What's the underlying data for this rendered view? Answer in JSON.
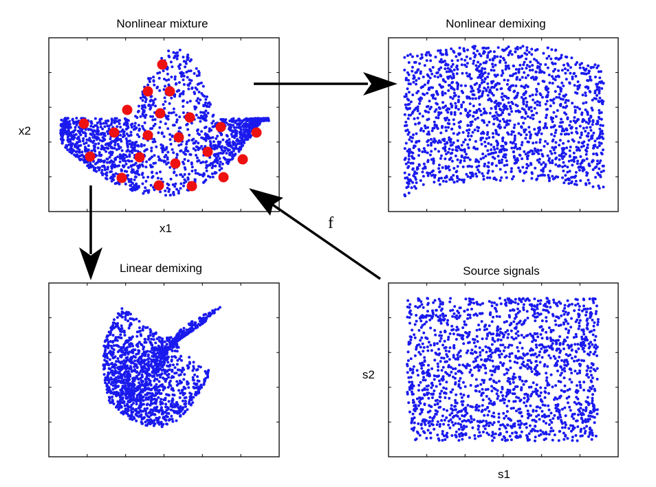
{
  "colors": {
    "points": "#1a1aee",
    "markers": "#ee1111",
    "frame": "#000000",
    "background": "#ffffff"
  },
  "panels": {
    "nonlinear_mixture": {
      "title": "Nonlinear mixture",
      "xlabel": "x1",
      "ylabel": "x2"
    },
    "nonlinear_demixing": {
      "title": "Nonlinear demixing"
    },
    "linear_demixing": {
      "title": "Linear demixing"
    },
    "source_signals": {
      "title": "Source signals",
      "xlabel": "s1",
      "ylabel": "s2"
    }
  },
  "edges": [
    {
      "from": "nonlinear_mixture",
      "to": "nonlinear_demixing",
      "label": ""
    },
    {
      "from": "nonlinear_mixture",
      "to": "linear_demixing",
      "label": ""
    },
    {
      "from": "source_signals",
      "to": "nonlinear_mixture",
      "label": "f"
    }
  ]
}
